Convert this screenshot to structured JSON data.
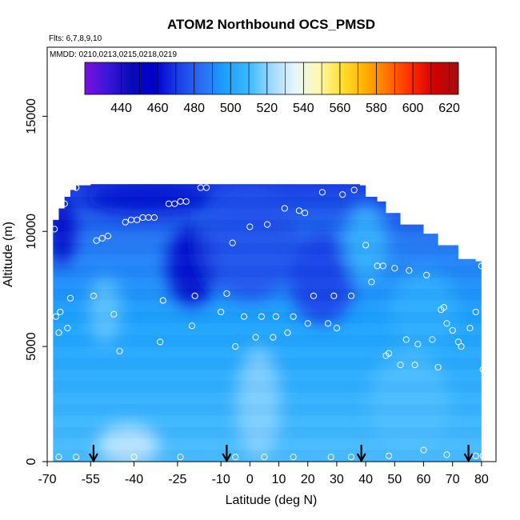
{
  "chart_data": {
    "type": "heatmap",
    "title": "ATOM2 Northbound OCS_PMSD",
    "subtitle_flights": "Flts: 6,7,8,9,10",
    "subtitle_dates": "MMDD: 0210,0213,0215,0218,0219",
    "xlabel": "Latitude (deg N)",
    "ylabel": "Altitude (m)",
    "xlim": [
      -70,
      85
    ],
    "ylim": [
      0,
      18000
    ],
    "x_ticks": [
      -70,
      -55,
      -40,
      -25,
      -10,
      0,
      10,
      20,
      30,
      40,
      50,
      60,
      70,
      80
    ],
    "y_ticks": [
      0,
      5000,
      10000,
      15000
    ],
    "colorbar": {
      "range": [
        420,
        625
      ],
      "ticks": [
        440,
        460,
        480,
        500,
        520,
        540,
        560,
        580,
        600,
        620
      ],
      "colors": [
        "#7b10e0",
        "#3a16d8",
        "#0a0ab8",
        "#0000c8",
        "#1a3ee8",
        "#2a6ef2",
        "#1aa0ff",
        "#3ab8ff",
        "#9ed8ff",
        "#e6f6ff",
        "#fff8b0",
        "#ffe030",
        "#ffb000",
        "#ff7000",
        "#ff2800",
        "#d00000",
        "#a01010"
      ]
    },
    "columns": [
      {
        "lat": -68,
        "top": 10500
      },
      {
        "lat": -66,
        "top": 11000
      },
      {
        "lat": -64,
        "top": 11500
      },
      {
        "lat": -62,
        "top": 11800
      },
      {
        "lat": -60,
        "top": 12000
      },
      {
        "lat": -55,
        "top": 12050
      },
      {
        "lat": -40,
        "top": 12050
      },
      {
        "lat": -25,
        "top": 12050
      },
      {
        "lat": -10,
        "top": 12050
      },
      {
        "lat": 0,
        "top": 12050
      },
      {
        "lat": 10,
        "top": 12050
      },
      {
        "lat": 20,
        "top": 12050
      },
      {
        "lat": 30,
        "top": 12050
      },
      {
        "lat": 38,
        "top": 12000
      },
      {
        "lat": 40,
        "top": 11500
      },
      {
        "lat": 44,
        "top": 11300
      },
      {
        "lat": 47,
        "top": 10800
      },
      {
        "lat": 52,
        "top": 10300
      },
      {
        "lat": 60,
        "top": 9900
      },
      {
        "lat": 65,
        "top": 9400
      },
      {
        "lat": 72,
        "top": 8800
      },
      {
        "lat": 78,
        "top": 8700
      },
      {
        "lat": 80,
        "top": 8600
      }
    ],
    "field_features": [
      {
        "lat": -20,
        "alt": 8500,
        "value": 458,
        "width": 14,
        "height": 3500
      },
      {
        "lat": -65,
        "alt": 10000,
        "value": 455,
        "width": 6,
        "height": 3000
      },
      {
        "lat": -35,
        "alt": 11500,
        "value": 460,
        "width": 40,
        "height": 1500
      },
      {
        "lat": 25,
        "alt": 8000,
        "value": 470,
        "width": 20,
        "height": 4000
      },
      {
        "lat": 0,
        "alt": 9500,
        "value": 475,
        "width": 30,
        "height": 5000
      },
      {
        "lat": -50,
        "alt": 6500,
        "value": 515,
        "width": 8,
        "height": 3000
      },
      {
        "lat": 3,
        "alt": 2500,
        "value": 520,
        "width": 12,
        "height": 5000
      },
      {
        "lat": -42,
        "alt": 700,
        "value": 530,
        "width": 18,
        "height": 1800
      },
      {
        "lat": 55,
        "alt": 2500,
        "value": 512,
        "width": 25,
        "height": 4500
      },
      {
        "lat": 40,
        "alt": 9500,
        "value": 508,
        "width": 12,
        "height": 3500
      },
      {
        "lat": 60,
        "alt": 6500,
        "value": 505,
        "width": 20,
        "height": 3500
      }
    ],
    "sample_points": [
      [
        -67.5,
        10100
      ],
      [
        -67,
        6300
      ],
      [
        -66,
        5600
      ],
      [
        -65.5,
        6500
      ],
      [
        -64,
        11200
      ],
      [
        -63,
        5800
      ],
      [
        -62,
        7100
      ],
      [
        -60,
        11900
      ],
      [
        -54,
        7200
      ],
      [
        -53,
        9600
      ],
      [
        -51,
        9700
      ],
      [
        -49,
        9800
      ],
      [
        -47,
        6400
      ],
      [
        -45,
        4800
      ],
      [
        -43,
        10400
      ],
      [
        -41,
        10500
      ],
      [
        -39,
        10500
      ],
      [
        -37,
        10600
      ],
      [
        -35,
        10600
      ],
      [
        -33,
        10600
      ],
      [
        -31,
        5200
      ],
      [
        -30,
        7000
      ],
      [
        -28,
        11200
      ],
      [
        -26,
        11200
      ],
      [
        -24,
        11300
      ],
      [
        -22,
        11300
      ],
      [
        -20,
        5900
      ],
      [
        -19,
        7200
      ],
      [
        -17,
        11900
      ],
      [
        -15,
        11900
      ],
      [
        -10,
        6500
      ],
      [
        -8,
        7300
      ],
      [
        -6,
        9500
      ],
      [
        -5,
        5000
      ],
      [
        -2,
        6300
      ],
      [
        0,
        10200
      ],
      [
        2,
        5400
      ],
      [
        4,
        6300
      ],
      [
        6,
        10300
      ],
      [
        8,
        5400
      ],
      [
        9,
        6300
      ],
      [
        12,
        11000
      ],
      [
        13,
        5600
      ],
      [
        15,
        6300
      ],
      [
        17,
        10900
      ],
      [
        19,
        10800
      ],
      [
        20,
        6000
      ],
      [
        22,
        7200
      ],
      [
        25,
        11700
      ],
      [
        27,
        6000
      ],
      [
        29,
        7200
      ],
      [
        30,
        5800
      ],
      [
        32,
        11600
      ],
      [
        35,
        7200
      ],
      [
        36,
        11800
      ],
      [
        40,
        9400
      ],
      [
        42,
        7800
      ],
      [
        44,
        8500
      ],
      [
        46,
        8500
      ],
      [
        47,
        4600
      ],
      [
        48,
        4700
      ],
      [
        50,
        8400
      ],
      [
        52,
        4200
      ],
      [
        54,
        5300
      ],
      [
        55,
        8300
      ],
      [
        57,
        4200
      ],
      [
        58,
        5100
      ],
      [
        61,
        8100
      ],
      [
        63,
        5300
      ],
      [
        65,
        4100
      ],
      [
        66,
        6600
      ],
      [
        67,
        6700
      ],
      [
        68,
        6000
      ],
      [
        70,
        5700
      ],
      [
        72,
        5200
      ],
      [
        73,
        5000
      ],
      [
        75,
        9300
      ],
      [
        76,
        5800
      ],
      [
        78,
        6500
      ],
      [
        80,
        8500
      ],
      [
        80.5,
        4000
      ],
      [
        -66,
        200
      ],
      [
        -60,
        200
      ],
      [
        -40,
        200
      ],
      [
        -24,
        200
      ],
      [
        -5,
        200
      ],
      [
        5,
        200
      ],
      [
        15,
        200
      ],
      [
        28,
        200
      ],
      [
        35,
        200
      ],
      [
        48,
        250
      ],
      [
        60,
        500
      ],
      [
        68,
        300
      ],
      [
        78,
        250
      ],
      [
        80.5,
        250
      ],
      [
        -64,
        12000
      ]
    ],
    "arrow_latitudes": [
      -54,
      -8,
      38.5,
      75.5
    ]
  }
}
